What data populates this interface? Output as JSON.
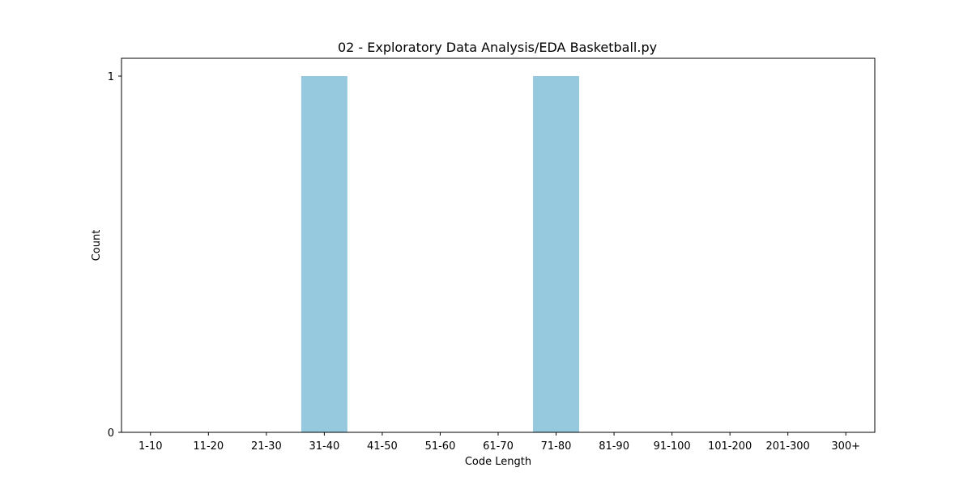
{
  "chart_data": {
    "type": "bar",
    "title": "02 - Exploratory Data Analysis/EDA Basketball.py",
    "xlabel": "Code Length",
    "ylabel": "Count",
    "categories": [
      "1-10",
      "11-20",
      "21-30",
      "31-40",
      "41-50",
      "51-60",
      "61-70",
      "71-80",
      "81-90",
      "91-100",
      "101-200",
      "201-300",
      "300+"
    ],
    "values": [
      0,
      0,
      0,
      1,
      0,
      0,
      0,
      1,
      0,
      0,
      0,
      0,
      0
    ],
    "ylim": [
      0,
      1.05
    ],
    "yticks": [
      0,
      1
    ],
    "grid": false,
    "legend": "none",
    "bar_color": "#96c9de",
    "axis_color": "#000000"
  }
}
